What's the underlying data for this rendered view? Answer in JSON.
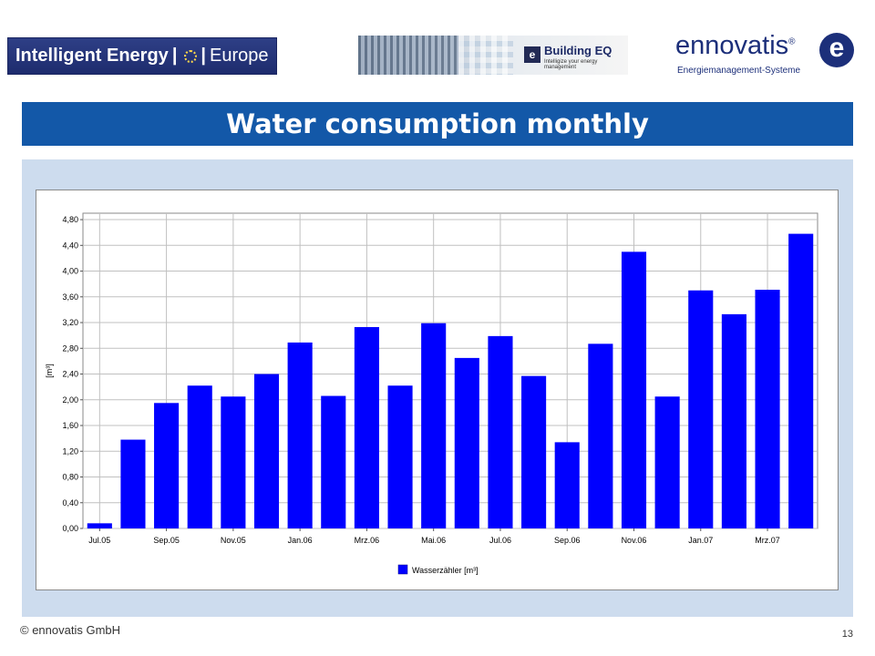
{
  "header": {
    "logo_ie_text": "Intelligent Energy",
    "logo_ie_europe": "Europe",
    "logo_beq_name": "Building EQ",
    "logo_beq_mark": "e",
    "logo_beq_tag": "Intelligize your energy management",
    "logo_enn_word": "ennovatis",
    "logo_enn_reg": "®",
    "logo_enn_sub": "Energiemanagement-Systeme",
    "logo_enn_mark": "e"
  },
  "slide": {
    "title": "Water consumption monthly",
    "copyright": "© ennovatis GmbH",
    "page_number": "13"
  },
  "colors": {
    "title_bar": "#1358a8",
    "panel": "#cddcee",
    "bar": "#0000ff",
    "grid": "#c0c0c0"
  },
  "chart_data": {
    "type": "bar",
    "ylabel": "[m³]",
    "ylim": [
      0,
      4.9
    ],
    "yticks": [
      "0,00",
      "0,40",
      "0,80",
      "1,20",
      "1,60",
      "2,00",
      "2,40",
      "2,80",
      "3,20",
      "3,60",
      "4,00",
      "4,40",
      "4,80"
    ],
    "ytick_values": [
      0,
      0.4,
      0.8,
      1.2,
      1.6,
      2.0,
      2.4,
      2.8,
      3.2,
      3.6,
      4.0,
      4.4,
      4.8
    ],
    "xtick_labels": [
      "Jul.05",
      "Sep.05",
      "Nov.05",
      "Jan.06",
      "Mrz.06",
      "Mai.06",
      "Jul.06",
      "Sep.06",
      "Nov.06",
      "Jan.07",
      "Mrz.07"
    ],
    "grid": true,
    "legend_position": "bottom",
    "series": [
      {
        "name": "Wasserzähler [m³]",
        "values": [
          0.08,
          1.38,
          1.95,
          2.22,
          2.05,
          2.4,
          2.89,
          2.06,
          3.13,
          2.22,
          3.19,
          2.65,
          2.99,
          2.37,
          1.34,
          2.87,
          4.3,
          2.05,
          3.7,
          3.33,
          3.71,
          4.58
        ]
      }
    ]
  }
}
